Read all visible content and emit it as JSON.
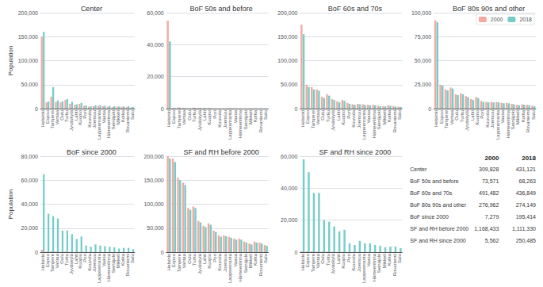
{
  "chart_data": [
    {
      "type": "bar",
      "title": "Center",
      "ylabel": "Population",
      "categories": [
        "Helsinki",
        "Espoo",
        "Tampere",
        "Vantaa",
        "Oulu",
        "Turku",
        "Jyväskylä",
        "Lahti",
        "Kuopio",
        "Pori",
        "Kouvola",
        "Joensuu",
        "Lappeenranta",
        "Vaasa",
        "Hämeenlinna",
        "Seinäjoki",
        "Mikkeli",
        "Kotka",
        "Rovaniemi",
        "Salo"
      ],
      "series": [
        {
          "name": "2000",
          "color": "#f4a9a0",
          "values": [
            150000,
            13000,
            25000,
            14000,
            13000,
            18000,
            10000,
            8000,
            10000,
            6000,
            4000,
            5000,
            6000,
            5000,
            4000,
            3000,
            4000,
            4000,
            3000,
            3000
          ]
        },
        {
          "name": "2018",
          "color": "#76ccc9",
          "values": [
            160000,
            15000,
            45000,
            17000,
            15000,
            20000,
            14000,
            9000,
            12000,
            6500,
            5000,
            7000,
            7000,
            6000,
            5500,
            5000,
            4500,
            4500,
            5000,
            3500
          ]
        }
      ],
      "ylim": [
        0,
        200000
      ],
      "yticks": [
        0,
        {
          "value": 50000,
          "label": "50,000"
        },
        {
          "value": 100000,
          "label": "100,000"
        },
        {
          "value": 150000,
          "label": "150,000"
        },
        {
          "value": 200000,
          "label": "200,000"
        }
      ],
      "grid": true
    },
    {
      "type": "bar",
      "title": "BoF 50s and before",
      "categories": [
        "Helsinki",
        "Espoo",
        "Tampere",
        "Vantaa",
        "Oulu",
        "Turku",
        "Jyväskylä",
        "Lahti",
        "Kuopio",
        "Pori",
        "Kouvola",
        "Joensuu",
        "Lappeenranta",
        "Vaasa",
        "Hämeenlinna",
        "Seinäjoki",
        "Mikkeli",
        "Kotka",
        "Rovaniemi",
        "Salo"
      ],
      "series": [
        {
          "name": "2000",
          "color": "#f4a9a0",
          "values": [
            55000,
            500,
            800,
            500,
            300,
            600,
            500,
            400,
            400,
            200,
            150,
            200,
            300,
            200,
            200,
            100,
            200,
            200,
            100,
            100
          ]
        },
        {
          "name": "2018",
          "color": "#76ccc9",
          "values": [
            42000,
            400,
            600,
            400,
            250,
            500,
            400,
            300,
            300,
            150,
            120,
            150,
            250,
            150,
            150,
            80,
            150,
            150,
            80,
            80
          ]
        }
      ],
      "ylim": [
        0,
        60000
      ],
      "yticks": [
        0,
        {
          "value": 20000,
          "label": "20,000"
        },
        {
          "value": 40000,
          "label": "40,000"
        },
        {
          "value": 60000,
          "label": "60,000"
        }
      ],
      "grid": true
    },
    {
      "type": "bar",
      "title": "BoF 60s and 70s",
      "categories": [
        "Helsinki",
        "Espoo",
        "Tampere",
        "Vantaa",
        "Oulu",
        "Turku",
        "Jyväskylä",
        "Lahti",
        "Kuopio",
        "Pori",
        "Kouvola",
        "Joensuu",
        "Lappeenranta",
        "Vaasa",
        "Hämeenlinna",
        "Seinäjoki",
        "Mikkeli",
        "Kotka",
        "Rovaniemi",
        "Salo"
      ],
      "series": [
        {
          "name": "2000",
          "color": "#f4a9a0",
          "values": [
            175000,
            50000,
            45000,
            40000,
            25000,
            30000,
            20000,
            15000,
            18000,
            12000,
            9000,
            10000,
            9000,
            8000,
            8000,
            6000,
            5000,
            7000,
            5000,
            4000
          ]
        },
        {
          "name": "2018",
          "color": "#76ccc9",
          "values": [
            155000,
            45000,
            40000,
            37000,
            22000,
            27000,
            18000,
            13000,
            16000,
            10000,
            8000,
            9000,
            8000,
            7000,
            7000,
            5000,
            4500,
            6000,
            4500,
            3500
          ]
        }
      ],
      "ylim": [
        0,
        200000
      ],
      "yticks": [
        0,
        {
          "value": 50000,
          "label": "50,000"
        },
        {
          "value": 100000,
          "label": "100,000"
        },
        {
          "value": 150000,
          "label": "150,000"
        },
        {
          "value": 200000,
          "label": "200,000"
        }
      ],
      "grid": true
    },
    {
      "type": "bar",
      "title": "BoF 80s 90s and other",
      "legend": "upper right",
      "categories": [
        "Helsinki",
        "Espoo",
        "Tampere",
        "Vantaa",
        "Oulu",
        "Turku",
        "Jyväskylä",
        "Lahti",
        "Kuopio",
        "Pori",
        "Kouvola",
        "Joensuu",
        "Lappeenranta",
        "Vaasa",
        "Hämeenlinna",
        "Seinäjoki",
        "Mikkeli",
        "Kotka",
        "Rovaniemi",
        "Salo"
      ],
      "series": [
        {
          "name": "2000",
          "color": "#f4a9a0",
          "values": [
            92000,
            25000,
            20000,
            22000,
            15000,
            16000,
            13000,
            10000,
            12000,
            8000,
            7000,
            7000,
            7000,
            6000,
            6000,
            5000,
            4000,
            4500,
            4000,
            3000
          ]
        },
        {
          "name": "2018",
          "color": "#76ccc9",
          "values": [
            90000,
            24000,
            19000,
            21000,
            14000,
            15000,
            12000,
            9000,
            11000,
            7000,
            6500,
            6500,
            6500,
            5500,
            5500,
            4500,
            3500,
            4000,
            3500,
            2500
          ]
        }
      ],
      "ylim": [
        0,
        100000
      ],
      "yticks": [
        0,
        {
          "value": 25000,
          "label": "25,000"
        },
        {
          "value": 50000,
          "label": "50,000"
        },
        {
          "value": 75000,
          "label": "75,000"
        },
        {
          "value": 100000,
          "label": "100,000"
        }
      ],
      "grid": true
    },
    {
      "type": "bar",
      "title": "BoF since 2000",
      "ylabel": "Population",
      "categories": [
        "Helsinki",
        "Espoo",
        "Tampere",
        "Vantaa",
        "Oulu",
        "Turku",
        "Jyväskylä",
        "Lahti",
        "Kuopio",
        "Pori",
        "Kouvola",
        "Joensuu",
        "Lappeenranta",
        "Vaasa",
        "Hämeenlinna",
        "Seinäjoki",
        "Mikkeli",
        "Kotka",
        "Rovaniemi",
        "Salo"
      ],
      "series": [
        {
          "name": "2000",
          "color": "#f4a9a0",
          "values": [
            2000,
            500,
            800,
            600,
            300,
            400,
            200,
            150,
            200,
            100,
            80,
            100,
            100,
            100,
            80,
            60,
            60,
            80,
            60,
            50
          ]
        },
        {
          "name": "2018",
          "color": "#76ccc9",
          "values": [
            65000,
            32000,
            30000,
            28000,
            18000,
            18000,
            15000,
            11000,
            13000,
            5500,
            4500,
            6500,
            5500,
            5000,
            4500,
            4000,
            3000,
            3500,
            3500,
            2500
          ]
        }
      ],
      "ylim": [
        0,
        80000
      ],
      "yticks": [
        0,
        {
          "value": 20000,
          "label": "20,000"
        },
        {
          "value": 40000,
          "label": "40,000"
        },
        {
          "value": 60000,
          "label": "60,000"
        },
        {
          "value": 80000,
          "label": "80,000"
        }
      ],
      "grid": true
    },
    {
      "type": "bar",
      "title": "SF and RH before 2000",
      "categories": [
        "Helsinki",
        "Espoo",
        "Tampere",
        "Vantaa",
        "Oulu",
        "Turku",
        "Jyväskylä",
        "Lahti",
        "Kuopio",
        "Pori",
        "Kouvola",
        "Joensuu",
        "Lappeenranta",
        "Vaasa",
        "Hämeenlinna",
        "Seinäjoki",
        "Mikkeli",
        "Kotka",
        "Rovaniemi",
        "Salo"
      ],
      "series": [
        {
          "name": "2000",
          "color": "#f4a9a0",
          "values": [
            200000,
            195000,
            155000,
            145000,
            92000,
            95000,
            65000,
            55000,
            60000,
            45000,
            35000,
            35000,
            32000,
            28000,
            28000,
            22000,
            18000,
            22000,
            20000,
            15000
          ]
        },
        {
          "name": "2018",
          "color": "#76ccc9",
          "values": [
            195000,
            188000,
            150000,
            140000,
            88000,
            92000,
            62000,
            52000,
            57000,
            42000,
            32000,
            33000,
            30000,
            26000,
            26000,
            20000,
            16000,
            20000,
            18000,
            13000
          ]
        }
      ],
      "ylim": [
        0,
        200000
      ],
      "yticks": [
        0,
        {
          "value": 50000,
          "label": "50,000"
        },
        {
          "value": 100000,
          "label": "100,000"
        },
        {
          "value": 150000,
          "label": "150,000"
        },
        {
          "value": 200000,
          "label": "200,000"
        }
      ],
      "grid": true
    },
    {
      "type": "bar",
      "title": "SF and RH since 2000",
      "categories": [
        "Helsinki",
        "Espoo",
        "Tampere",
        "Vantaa",
        "Oulu",
        "Turku",
        "Jyväskylä",
        "Lahti",
        "Kuopio",
        "Pori",
        "Kouvola",
        "Joensuu",
        "Lappeenranta",
        "Vaasa",
        "Hämeenlinna",
        "Seinäjoki",
        "Mikkeli",
        "Kotka",
        "Rovaniemi",
        "Salo"
      ],
      "series": [
        {
          "name": "2000",
          "color": "#f4a9a0",
          "values": [
            500,
            500,
            600,
            400,
            300,
            400,
            200,
            150,
            200,
            100,
            80,
            100,
            100,
            100,
            80,
            60,
            60,
            80,
            60,
            50
          ]
        },
        {
          "name": "2018",
          "color": "#76ccc9",
          "values": [
            58000,
            50000,
            37000,
            37000,
            20000,
            19000,
            16000,
            13000,
            14000,
            5500,
            4500,
            7000,
            5500,
            5500,
            4500,
            4000,
            3000,
            3500,
            3500,
            2500
          ]
        }
      ],
      "ylim": [
        0,
        60000
      ],
      "yticks": [
        0,
        {
          "value": 20000,
          "label": "20,000"
        },
        {
          "value": 40000,
          "label": "40,000"
        },
        {
          "value": 60000,
          "label": "60,000"
        }
      ],
      "grid": true
    },
    {
      "type": "table",
      "categories": [
        "Center",
        "BoF 50s and before",
        "BoF 60s and 70s",
        "BoF 80s 90s and other",
        "BoF since 2000",
        "SF and RH before 2000",
        "SF and RH since 2000"
      ],
      "series": [
        {
          "name": "2000",
          "values": [
            309828,
            73571,
            491482,
            276962,
            7279,
            1168433,
            5562
          ],
          "value_labels": [
            "309,828",
            "73,571",
            "491,482",
            "276,962",
            "7,279",
            "1,168,433",
            "5,562"
          ]
        },
        {
          "name": "2018",
          "values": [
            431121,
            68263,
            436849,
            274149,
            195414,
            1111330,
            250485
          ],
          "value_labels": [
            "431,121",
            "68,263",
            "436,849",
            "274,149",
            "195,414",
            "1,111,330",
            "250,485"
          ]
        }
      ]
    }
  ]
}
